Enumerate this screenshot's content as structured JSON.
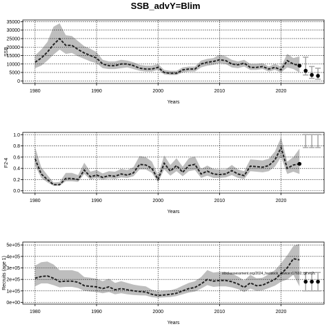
{
  "title": "SSB_advY=Blim",
  "colors": {
    "band": "#bebebe",
    "line": "#222222",
    "grid": "#000000",
    "forecast_bar": "#a6a6a6"
  },
  "chart_data": [
    {
      "type": "line",
      "xlabel": "Years",
      "ylabel": "SSB",
      "xlim": [
        1978,
        2027
      ],
      "ylim": [
        -1500,
        36000
      ],
      "xticks": [
        1980,
        1990,
        2000,
        2010,
        2020
      ],
      "yticks": [
        0,
        5000,
        10000,
        15000,
        20000,
        25000,
        30000,
        35000
      ],
      "ytick_labels": [
        "0",
        "5000",
        "10000",
        "15000",
        "20000",
        "25000",
        "30000",
        "35000"
      ],
      "grid": true,
      "x": [
        1980,
        1981,
        1982,
        1983,
        1984,
        1985,
        1986,
        1987,
        1988,
        1989,
        1990,
        1991,
        1992,
        1993,
        1994,
        1995,
        1996,
        1997,
        1998,
        1999,
        2000,
        2001,
        2002,
        2003,
        2004,
        2005,
        2006,
        2007,
        2008,
        2009,
        2010,
        2011,
        2012,
        2013,
        2014,
        2015,
        2016,
        2017,
        2018,
        2019,
        2020,
        2021,
        2022,
        2023
      ],
      "y": [
        11000,
        13500,
        17000,
        21500,
        25000,
        21000,
        21000,
        18500,
        16500,
        15000,
        13500,
        10000,
        9000,
        9000,
        10000,
        10000,
        9000,
        7500,
        7000,
        7000,
        8000,
        5000,
        4500,
        4500,
        6500,
        7000,
        7000,
        10000,
        11000,
        11500,
        12500,
        12000,
        10000,
        9500,
        10500,
        8000,
        8000,
        8500,
        7000,
        8000,
        6500,
        12000,
        10000,
        9000
      ],
      "lower": [
        7500,
        9000,
        12000,
        15500,
        18500,
        16000,
        16500,
        14500,
        13000,
        11500,
        10500,
        7500,
        7000,
        7000,
        7500,
        8000,
        7000,
        6000,
        5500,
        5500,
        6500,
        3800,
        3500,
        3500,
        5000,
        5500,
        5500,
        8000,
        9000,
        9500,
        10500,
        10000,
        8000,
        7500,
        8500,
        6500,
        6500,
        7000,
        5500,
        6500,
        5000,
        8000,
        7000,
        5000
      ],
      "upper": [
        15000,
        18500,
        23000,
        32000,
        34000,
        27000,
        26500,
        23500,
        20500,
        19000,
        17000,
        12500,
        11500,
        11500,
        12500,
        12000,
        11000,
        9500,
        9000,
        9000,
        10000,
        6500,
        6000,
        6000,
        8000,
        8500,
        8500,
        12000,
        13000,
        13500,
        15500,
        14500,
        12500,
        11500,
        12500,
        10000,
        10000,
        10500,
        8500,
        10000,
        8500,
        16000,
        13500,
        14500
      ],
      "forecast": {
        "x": [
          2023,
          2024,
          2025,
          2026
        ],
        "y": [
          9000,
          6000,
          3500,
          3000
        ],
        "lower": [
          null,
          3500,
          1500,
          1000
        ],
        "upper": [
          null,
          14000,
          8500,
          7500
        ]
      }
    },
    {
      "type": "line",
      "xlabel": "Years",
      "ylabel": "F2-4",
      "xlim": [
        1978,
        2027
      ],
      "ylim": [
        -0.04,
        1.04
      ],
      "xticks": [
        1980,
        1990,
        2000,
        2010,
        2020
      ],
      "yticks": [
        0,
        0.2,
        0.4,
        0.6,
        0.8,
        1
      ],
      "ytick_labels": [
        "0.0",
        "0.2",
        "0.4",
        "0.6",
        "0.8",
        "1.0"
      ],
      "grid": true,
      "x": [
        1980,
        1981,
        1982,
        1983,
        1984,
        1985,
        1986,
        1987,
        1988,
        1989,
        1990,
        1991,
        1992,
        1993,
        1994,
        1995,
        1996,
        1997,
        1998,
        1999,
        2000,
        2001,
        2002,
        2003,
        2004,
        2005,
        2006,
        2007,
        2008,
        2009,
        2010,
        2011,
        2012,
        2013,
        2014,
        2015,
        2016,
        2017,
        2018,
        2019,
        2020,
        2021,
        2022,
        2023
      ],
      "y": [
        0.57,
        0.3,
        0.2,
        0.11,
        0.11,
        0.22,
        0.22,
        0.2,
        0.37,
        0.25,
        0.28,
        0.24,
        0.27,
        0.26,
        0.3,
        0.28,
        0.32,
        0.47,
        0.46,
        0.4,
        0.2,
        0.49,
        0.35,
        0.45,
        0.33,
        0.45,
        0.47,
        0.3,
        0.35,
        0.3,
        0.29,
        0.3,
        0.36,
        0.3,
        0.27,
        0.44,
        0.43,
        0.42,
        0.45,
        0.55,
        0.77,
        0.4,
        0.46,
        0.48
      ],
      "lower": [
        0.45,
        0.23,
        0.15,
        0.09,
        0.09,
        0.17,
        0.17,
        0.16,
        0.3,
        0.2,
        0.23,
        0.2,
        0.22,
        0.21,
        0.24,
        0.23,
        0.26,
        0.38,
        0.38,
        0.32,
        0.15,
        0.38,
        0.27,
        0.35,
        0.26,
        0.35,
        0.37,
        0.23,
        0.27,
        0.23,
        0.23,
        0.24,
        0.28,
        0.23,
        0.21,
        0.35,
        0.34,
        0.33,
        0.35,
        0.43,
        0.6,
        0.3,
        0.34,
        0.3
      ],
      "upper": [
        0.78,
        0.42,
        0.28,
        0.15,
        0.16,
        0.32,
        0.32,
        0.28,
        0.5,
        0.34,
        0.37,
        0.31,
        0.35,
        0.34,
        0.39,
        0.37,
        0.42,
        0.62,
        0.6,
        0.52,
        0.28,
        0.63,
        0.46,
        0.58,
        0.43,
        0.58,
        0.61,
        0.39,
        0.45,
        0.39,
        0.38,
        0.38,
        0.46,
        0.38,
        0.35,
        0.56,
        0.55,
        0.54,
        0.57,
        0.7,
        0.95,
        0.52,
        0.6,
        0.75
      ],
      "forecast": {
        "x": [
          2024,
          2025,
          2026
        ],
        "upper": [
          1.0,
          1.0,
          1.0
        ],
        "lower": [
          0.77,
          0.77,
          0.77
        ]
      }
    },
    {
      "type": "line",
      "xlabel": "Years",
      "ylabel": "Recruits (age 1)",
      "xlim": [
        1978,
        2027
      ],
      "ylim": [
        -15000,
        525000
      ],
      "xticks": [
        1980,
        1990,
        2000,
        2010,
        2020
      ],
      "yticks": [
        0,
        100000,
        200000,
        300000,
        400000,
        500000
      ],
      "ytick_labels": [
        "0e+00",
        "1e+05",
        "2e+05",
        "3e+05",
        "4e+05",
        "5e+05"
      ],
      "grid": true,
      "annotation": "stockassessment.org/2024_haddock_advice:r17692; git:ec2c",
      "x": [
        1980,
        1981,
        1982,
        1983,
        1984,
        1985,
        1986,
        1987,
        1988,
        1989,
        1990,
        1991,
        1992,
        1993,
        1994,
        1995,
        1996,
        1997,
        1998,
        1999,
        2000,
        2001,
        2002,
        2003,
        2004,
        2005,
        2006,
        2007,
        2008,
        2009,
        2010,
        2011,
        2012,
        2013,
        2014,
        2015,
        2016,
        2017,
        2018,
        2019,
        2020,
        2021,
        2022,
        2023
      ],
      "y": [
        210000,
        225000,
        230000,
        210000,
        180000,
        185000,
        185000,
        175000,
        145000,
        140000,
        135000,
        120000,
        135000,
        110000,
        120000,
        110000,
        100000,
        95000,
        90000,
        70000,
        60000,
        65000,
        70000,
        80000,
        100000,
        120000,
        130000,
        160000,
        200000,
        185000,
        190000,
        190000,
        180000,
        160000,
        130000,
        170000,
        145000,
        150000,
        175000,
        200000,
        250000,
        300000,
        380000,
        370000
      ],
      "lower": [
        140000,
        165000,
        165000,
        150000,
        130000,
        135000,
        135000,
        125000,
        100000,
        95000,
        90000,
        80000,
        90000,
        70000,
        80000,
        70000,
        65000,
        62000,
        60000,
        45000,
        40000,
        43000,
        47000,
        55000,
        70000,
        85000,
        95000,
        120000,
        150000,
        135000,
        140000,
        140000,
        130000,
        115000,
        90000,
        120000,
        100000,
        105000,
        125000,
        145000,
        180000,
        200000,
        240000,
        140000
      ],
      "upper": [
        320000,
        350000,
        355000,
        330000,
        280000,
        280000,
        280000,
        265000,
        220000,
        215000,
        205000,
        185000,
        205000,
        170000,
        185000,
        170000,
        155000,
        145000,
        140000,
        110000,
        95000,
        100000,
        105000,
        120000,
        145000,
        170000,
        185000,
        220000,
        280000,
        260000,
        265000,
        265000,
        250000,
        225000,
        190000,
        240000,
        210000,
        215000,
        245000,
        280000,
        340000,
        410000,
        490000,
        510000
      ],
      "forecast": {
        "x": [
          2024,
          2025,
          2026
        ],
        "y": [
          180000,
          180000,
          180000
        ],
        "lower": [
          100000,
          100000,
          100000
        ],
        "upper": [
          260000,
          260000,
          260000
        ]
      }
    }
  ]
}
